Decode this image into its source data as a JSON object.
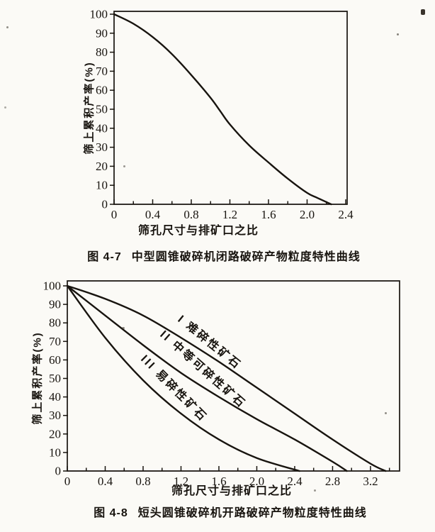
{
  "page": {
    "background": "#fbfaf6",
    "ink": "#18140f"
  },
  "chart_data": [
    {
      "type": "line",
      "fig_label": "图 4-7",
      "title": "中型圆锥破碎机闭路破碎产物粒度特性曲线",
      "xlabel": "筛孔尺寸与排矿口之比",
      "ylabel": "筛上累积产率(%)",
      "xlim": [
        0,
        2.4
      ],
      "ylim": [
        0,
        100
      ],
      "xticks": [
        "0",
        "0.4",
        "0.8",
        "1.2",
        "1.6",
        "2.0",
        "2.4"
      ],
      "yticks": [
        100,
        90,
        80,
        70,
        60,
        50,
        40,
        30,
        20,
        10,
        0
      ],
      "grid": false,
      "legend": "none",
      "series": [
        {
          "name": "",
          "x": [
            0,
            0.2,
            0.4,
            0.6,
            0.8,
            1.0,
            1.1,
            1.2,
            1.4,
            1.6,
            1.8,
            2.0,
            2.1,
            2.25
          ],
          "y": [
            100,
            95,
            88,
            79,
            68,
            56,
            49,
            42,
            31,
            22,
            13.5,
            6,
            3.5,
            0
          ]
        }
      ]
    },
    {
      "type": "line",
      "fig_label": "图 4-8",
      "title": "短头圆锥破碎机开路破碎产物粒度特性曲线",
      "xlabel": "筛孔尺寸与排矿口之比",
      "ylabel": "筛上累积产率(%)",
      "xlim": [
        0,
        3.2
      ],
      "ylim": [
        0,
        100
      ],
      "xticks": [
        "0",
        "0.4",
        "0.8",
        "1.2",
        "1.6",
        "2.0",
        "2.4",
        "2.8",
        "3.2"
      ],
      "yticks": [
        100,
        90,
        80,
        70,
        60,
        50,
        40,
        30,
        20,
        10,
        0
      ],
      "grid": false,
      "legend": "labels-on-curves",
      "series": [
        {
          "name": "I  难碎性矿石",
          "x": [
            0,
            0.4,
            0.8,
            1.2,
            1.6,
            2.0,
            2.4,
            2.8,
            3.2,
            3.36
          ],
          "y": [
            100,
            93,
            84,
            72,
            59,
            45,
            31,
            17,
            4,
            0
          ]
        },
        {
          "name": "II  中等可碎性矿石",
          "x": [
            0,
            0.4,
            0.8,
            1.2,
            1.6,
            2.0,
            2.4,
            2.8,
            2.95
          ],
          "y": [
            100,
            84,
            68,
            53,
            40,
            28,
            17,
            5,
            0
          ]
        },
        {
          "name": "III  易碎性矿石",
          "x": [
            0,
            0.4,
            0.8,
            1.2,
            1.6,
            2.0,
            2.45
          ],
          "y": [
            100,
            72,
            49,
            31,
            17,
            7,
            0
          ]
        }
      ]
    }
  ]
}
